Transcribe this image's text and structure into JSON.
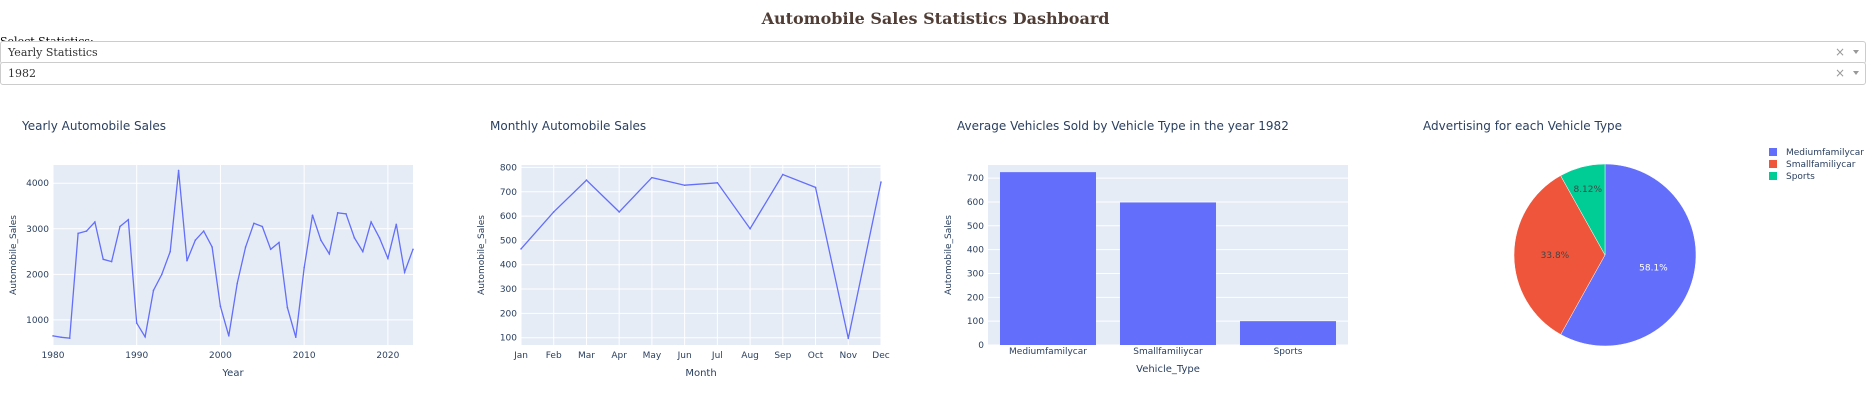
{
  "page": {
    "title": "Automobile Sales Statistics Dashboard",
    "select_label": "Select Statistics:",
    "dropdowns": [
      {
        "value": "Yearly Statistics",
        "clear": "×"
      },
      {
        "value": "1982",
        "clear": "×"
      }
    ]
  },
  "colors": {
    "title": "#503D36",
    "plot_bg": "#E5ECF6",
    "grid": "#ffffff",
    "line": "#636EFA",
    "bar": "#636EFA",
    "pie": [
      "#636EFA",
      "#EF553B",
      "#00CC96"
    ],
    "text": "#2a3f5f"
  },
  "chart_data": [
    {
      "type": "line",
      "title": "Yearly Automobile Sales",
      "xlabel": "Year",
      "ylabel": "Automobile_Sales",
      "xlim": [
        1980,
        2023
      ],
      "ylim": [
        450,
        4400
      ],
      "xticks": [
        1980,
        1990,
        2000,
        2010,
        2020
      ],
      "yticks": [
        1000,
        2000,
        3000,
        4000
      ],
      "x": [
        1980,
        1981,
        1982,
        1983,
        1984,
        1985,
        1986,
        1987,
        1988,
        1989,
        1990,
        1991,
        1992,
        1993,
        1994,
        1995,
        1996,
        1997,
        1998,
        1999,
        2000,
        2001,
        2002,
        2003,
        2004,
        2005,
        2006,
        2007,
        2008,
        2009,
        2010,
        2011,
        2012,
        2013,
        2014,
        2015,
        2016,
        2017,
        2018,
        2019,
        2020,
        2021,
        2022,
        2023
      ],
      "y": [
        650,
        620,
        600,
        2900,
        2950,
        3150,
        2330,
        2280,
        3050,
        3200,
        930,
        630,
        1650,
        2000,
        2500,
        4280,
        2300,
        2750,
        2950,
        2600,
        1300,
        650,
        1800,
        2600,
        3120,
        3050,
        2550,
        2700,
        1270,
        620,
        2150,
        3300,
        2750,
        2450,
        3350,
        3330,
        2800,
        2500,
        3150,
        2800,
        2350,
        3100,
        2050,
        2550
      ]
    },
    {
      "type": "line",
      "title": "Monthly Automobile Sales",
      "xlabel": "Month",
      "ylabel": "Automobile_Sales",
      "ylim": [
        70,
        810
      ],
      "yticks": [
        100,
        200,
        300,
        400,
        500,
        600,
        700,
        800
      ],
      "categories": [
        "Jan",
        "Feb",
        "Mar",
        "Apr",
        "May",
        "Jun",
        "Jul",
        "Aug",
        "Sep",
        "Oct",
        "Nov",
        "Dec"
      ],
      "values": [
        465,
        617,
        748,
        617,
        758,
        727,
        737,
        548,
        771,
        718,
        97,
        740
      ]
    },
    {
      "type": "bar",
      "title": "Average Vehicles Sold by Vehicle Type in the year 1982",
      "xlabel": "Vehicle_Type",
      "ylabel": "Automobile_Sales",
      "ylim": [
        0,
        755
      ],
      "yticks": [
        0,
        100,
        200,
        300,
        400,
        500,
        600,
        700
      ],
      "categories": [
        "Mediumfamilycar",
        "Smallfamiliycar",
        "Sports"
      ],
      "values": [
        725,
        598,
        100
      ]
    },
    {
      "type": "pie",
      "title": "Advertising for each Vehicle Type",
      "labels": [
        "Mediumfamilycar",
        "Smallfamiliycar",
        "Sports"
      ],
      "values": [
        58.1,
        33.8,
        8.12
      ],
      "text_labels": [
        "58.1%",
        "33.8%",
        "8.12%"
      ],
      "legend_position": "top-right"
    }
  ]
}
